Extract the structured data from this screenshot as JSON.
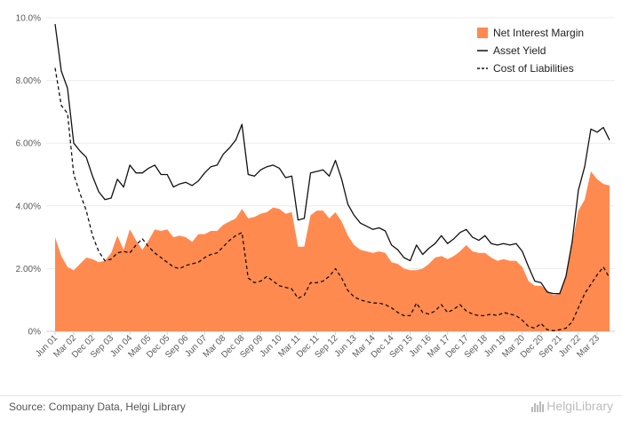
{
  "chart_data": {
    "type": "area",
    "ylim": [
      0,
      10
    ],
    "y_ticks": [
      "0%",
      "2.00%",
      "4.00%",
      "6.00%",
      "8.00%",
      "10.0%"
    ],
    "x_ticks": [
      "Jun 01",
      "Mar 02",
      "Dec 02",
      "Sep 03",
      "Jun 04",
      "Mar 05",
      "Dec 05",
      "Sep 06",
      "Jun 07",
      "Mar 08",
      "Dec 08",
      "Sep 09",
      "Jun 10",
      "Mar 11",
      "Dec 11",
      "Sep 12",
      "Jun 13",
      "Mar 14",
      "Dec 14",
      "Sep 15",
      "Jun 16",
      "Mar 17",
      "Dec 17",
      "Sep 18",
      "Jun 19",
      "Mar 20",
      "Dec 20",
      "Sep 21",
      "Jun 22",
      "Mar 23"
    ],
    "grid": true,
    "legend_position": "top-right",
    "x_start": "Jun 01",
    "x_frequency": "quarterly",
    "series": [
      {
        "name": "Net Interest Margin",
        "type": "area",
        "color": "#ff8a50",
        "values": [
          3.0,
          2.4,
          2.05,
          1.95,
          2.15,
          2.35,
          2.3,
          2.2,
          2.25,
          2.5,
          3.05,
          2.6,
          3.25,
          2.9,
          2.6,
          2.9,
          3.25,
          3.2,
          3.25,
          3.0,
          3.05,
          3.0,
          2.85,
          3.1,
          3.1,
          3.2,
          3.2,
          3.4,
          3.5,
          3.6,
          3.9,
          3.6,
          3.65,
          3.75,
          3.8,
          3.95,
          3.9,
          3.75,
          3.8,
          2.7,
          2.7,
          3.7,
          3.85,
          3.85,
          3.6,
          3.8,
          3.5,
          3.05,
          2.75,
          2.6,
          2.55,
          2.5,
          2.55,
          2.5,
          2.2,
          2.15,
          2.0,
          1.95,
          1.95,
          2.0,
          2.15,
          2.35,
          2.4,
          2.3,
          2.4,
          2.55,
          2.75,
          2.55,
          2.5,
          2.5,
          2.35,
          2.25,
          2.3,
          2.25,
          2.25,
          2.05,
          1.6,
          1.45,
          1.45,
          1.3,
          1.15,
          1.2,
          1.8,
          2.8,
          3.85,
          4.2,
          5.1,
          4.85,
          4.7,
          4.65
        ]
      },
      {
        "name": "Asset Yield",
        "type": "line",
        "color": "#111111",
        "values": [
          9.8,
          8.3,
          7.75,
          6.0,
          5.75,
          5.55,
          4.95,
          4.45,
          4.2,
          4.25,
          4.85,
          4.6,
          5.3,
          5.05,
          5.05,
          5.2,
          5.3,
          5.0,
          5.0,
          4.6,
          4.7,
          4.75,
          4.65,
          4.8,
          5.05,
          5.25,
          5.3,
          5.65,
          5.85,
          6.1,
          6.6,
          5.0,
          4.95,
          5.15,
          5.25,
          5.3,
          5.2,
          4.9,
          4.95,
          3.55,
          3.6,
          5.05,
          5.1,
          5.15,
          4.95,
          5.45,
          4.85,
          4.05,
          3.7,
          3.45,
          3.35,
          3.25,
          3.3,
          3.2,
          2.75,
          2.6,
          2.35,
          2.25,
          2.75,
          2.45,
          2.65,
          2.8,
          3.05,
          2.8,
          2.95,
          3.15,
          3.25,
          3.0,
          2.9,
          3.05,
          2.8,
          2.75,
          2.8,
          2.75,
          2.8,
          2.55,
          2.05,
          1.6,
          1.55,
          1.25,
          1.2,
          1.2,
          1.75,
          2.85,
          4.5,
          5.25,
          6.45,
          6.35,
          6.5,
          6.1
        ]
      },
      {
        "name": "Cost of Liabilities",
        "type": "line",
        "dashed": true,
        "color": "#111111",
        "values": [
          8.4,
          7.2,
          6.95,
          5.0,
          4.4,
          3.85,
          3.05,
          2.55,
          2.25,
          2.3,
          2.5,
          2.55,
          2.5,
          2.75,
          2.95,
          2.7,
          2.5,
          2.35,
          2.2,
          2.05,
          2.0,
          2.1,
          2.15,
          2.2,
          2.35,
          2.45,
          2.5,
          2.7,
          2.9,
          3.05,
          3.15,
          1.7,
          1.55,
          1.6,
          1.75,
          1.6,
          1.45,
          1.4,
          1.35,
          1.05,
          1.15,
          1.55,
          1.55,
          1.6,
          1.75,
          2.0,
          1.7,
          1.3,
          1.1,
          1.0,
          0.95,
          0.9,
          0.9,
          0.85,
          0.75,
          0.6,
          0.5,
          0.5,
          0.9,
          0.6,
          0.55,
          0.65,
          0.85,
          0.6,
          0.7,
          0.85,
          0.65,
          0.55,
          0.5,
          0.5,
          0.55,
          0.5,
          0.6,
          0.55,
          0.5,
          0.35,
          0.15,
          0.1,
          0.25,
          0.05,
          0.02,
          0.05,
          0.1,
          0.3,
          0.75,
          1.2,
          1.5,
          1.8,
          2.05,
          1.7
        ]
      }
    ]
  },
  "footer": {
    "source": "Source: Company Data, Helgi Library",
    "brand": "HelgiLibrary"
  }
}
